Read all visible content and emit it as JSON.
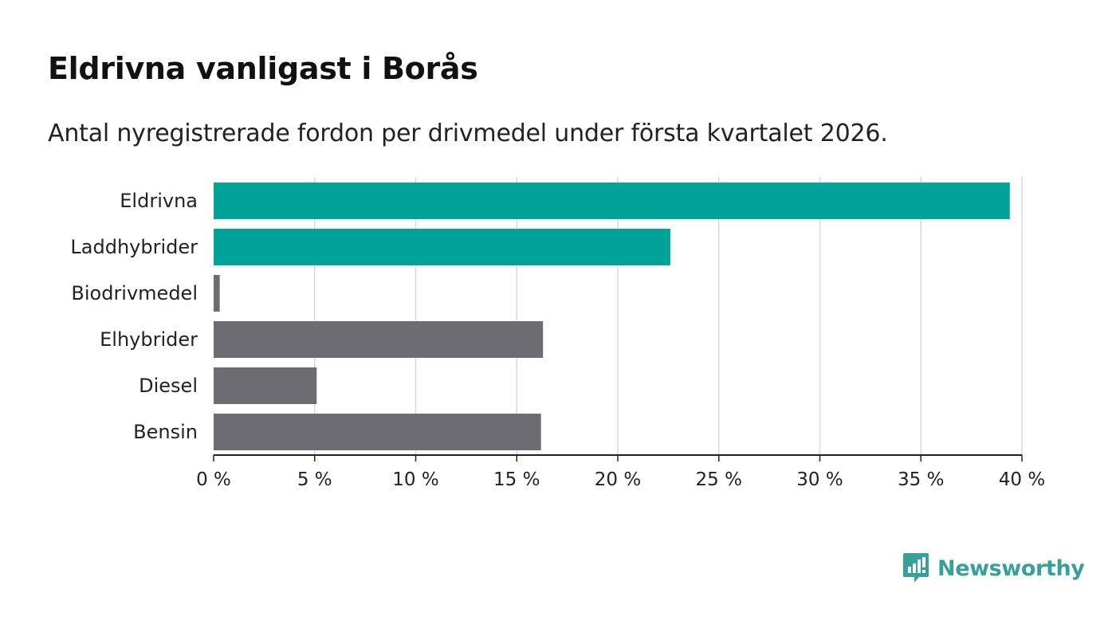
{
  "header": {
    "title": "Eldrivna vanligast i Borås",
    "subtitle": "Antal nyregistrerade fordon per drivmedel under första kvartalet 2026."
  },
  "chart_data": {
    "type": "bar",
    "orientation": "horizontal",
    "categories": [
      "Eldrivna",
      "Laddhybrider",
      "Biodrivmedel",
      "Elhybrider",
      "Diesel",
      "Bensin"
    ],
    "values": [
      39.4,
      22.6,
      0.3,
      16.3,
      5.1,
      16.2
    ],
    "highlight": [
      true,
      true,
      false,
      false,
      false,
      false
    ],
    "xlim": [
      0,
      40
    ],
    "xticks": [
      0,
      5,
      10,
      15,
      20,
      25,
      30,
      35,
      40
    ],
    "xtick_labels": [
      "0 %",
      "5 %",
      "10 %",
      "15 %",
      "20 %",
      "25 %",
      "30 %",
      "35 %",
      "40 %"
    ],
    "xlabel": "",
    "ylabel": "",
    "grid": true,
    "colors": {
      "highlight": "#00a29a",
      "default": "#6d6c72",
      "grid": "#d9d9d9",
      "axis": "#222222"
    }
  },
  "branding": {
    "logo_text": "Newsworthy",
    "logo_color": "#3a9e9a"
  }
}
